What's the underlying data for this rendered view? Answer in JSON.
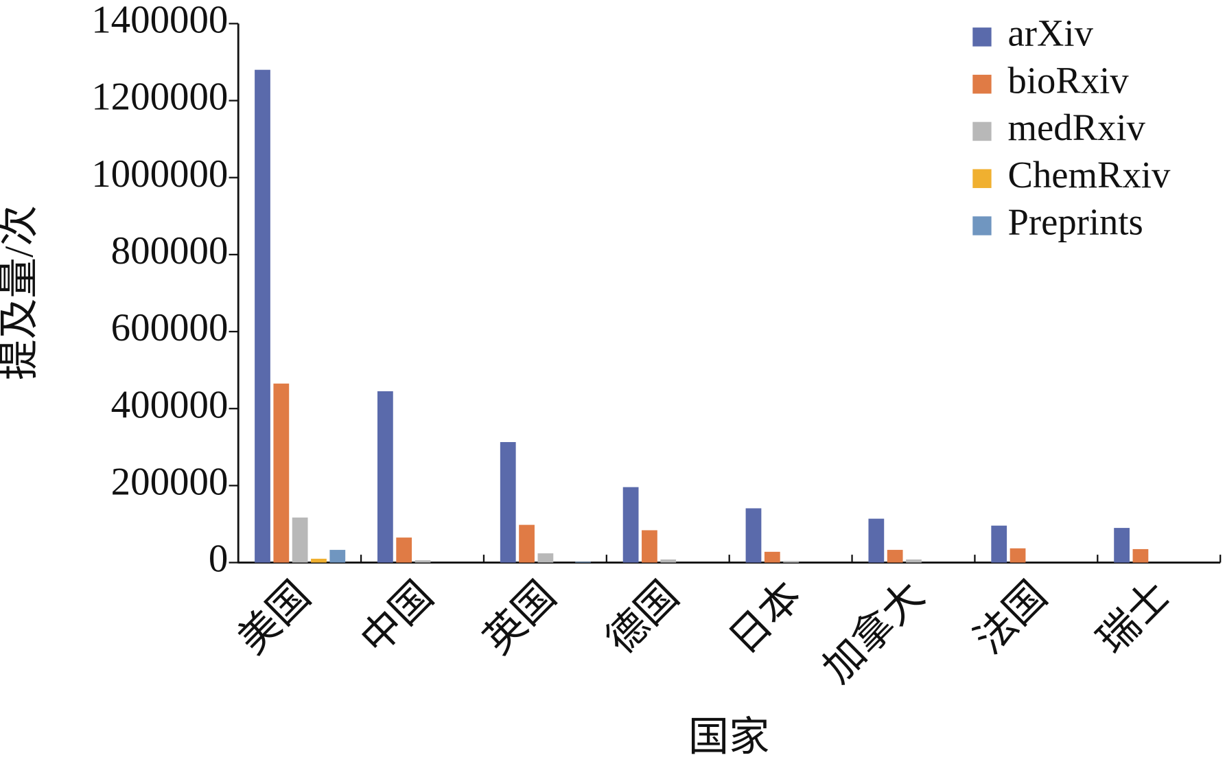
{
  "chart_data": {
    "type": "bar",
    "x_label": "国家",
    "y_label": "提及量/次",
    "categories": [
      "美国",
      "中国",
      "英国",
      "德国",
      "日本",
      "加拿大",
      "法国",
      "瑞士"
    ],
    "series": [
      {
        "name": "arXiv",
        "color": "#5a6aab",
        "values": [
          1280000,
          445000,
          313000,
          196000,
          141000,
          114000,
          96000,
          90000
        ]
      },
      {
        "name": "bioRxiv",
        "color": "#e07b45",
        "values": [
          465000,
          65000,
          98000,
          84000,
          28000,
          33000,
          37000,
          35000
        ]
      },
      {
        "name": "medRxiv",
        "color": "#b8b8b8",
        "values": [
          117000,
          6000,
          24000,
          8000,
          4000,
          8000,
          0,
          0
        ]
      },
      {
        "name": "ChemRxiv",
        "color": "#f0b030",
        "values": [
          10000,
          0,
          0,
          0,
          0,
          0,
          0,
          0
        ]
      },
      {
        "name": "Preprints",
        "color": "#7096c0",
        "values": [
          33000,
          0,
          2000,
          0,
          0,
          0,
          0,
          0
        ]
      }
    ],
    "ylim": [
      0,
      1400000
    ],
    "yticks": [
      0,
      200000,
      400000,
      600000,
      800000,
      1000000,
      1200000,
      1400000
    ],
    "grid": false,
    "legend": "upper right"
  }
}
